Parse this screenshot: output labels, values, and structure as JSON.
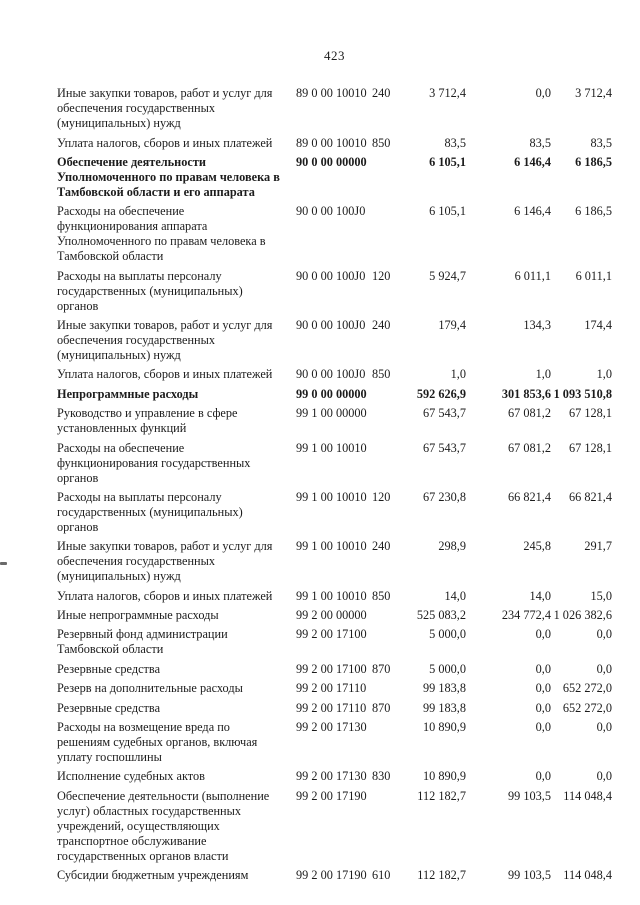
{
  "page": {
    "number": "423"
  },
  "table": {
    "rows": [
      {
        "name": "Иные закупки товаров, работ и услуг для обеспечения государственных (муниципальных) нужд",
        "code": "89 0 00 10010",
        "vr": "240",
        "v1": "3 712,4",
        "v2": "0,0",
        "v3": "3 712,4",
        "bold": false
      },
      {
        "name": "Уплата налогов, сборов и иных платежей",
        "code": "89 0 00 10010",
        "vr": "850",
        "v1": "83,5",
        "v2": "83,5",
        "v3": "83,5",
        "bold": false
      },
      {
        "name": "Обеспечение деятельности Уполномоченного по правам человека в Тамбовской области и его аппарата",
        "code": "90 0 00 00000",
        "vr": "",
        "v1": "6 105,1",
        "v2": "6 146,4",
        "v3": "6 186,5",
        "bold": true
      },
      {
        "name": "Расходы на обеспечение функционирования аппарата Уполномоченного по правам человека в Тамбовской области",
        "code": "90 0 00 100J0",
        "vr": "",
        "v1": "6 105,1",
        "v2": "6 146,4",
        "v3": "6 186,5",
        "bold": false
      },
      {
        "name": "Расходы на выплаты персоналу государственных (муниципальных) органов",
        "code": "90 0 00 100J0",
        "vr": "120",
        "v1": "5 924,7",
        "v2": "6 011,1",
        "v3": "6 011,1",
        "bold": false
      },
      {
        "name": "Иные закупки товаров, работ и услуг для обеспечения государственных (муниципальных) нужд",
        "code": "90 0 00 100J0",
        "vr": "240",
        "v1": "179,4",
        "v2": "134,3",
        "v3": "174,4",
        "bold": false
      },
      {
        "name": "Уплата налогов, сборов и иных платежей",
        "code": "90 0 00 100J0",
        "vr": "850",
        "v1": "1,0",
        "v2": "1,0",
        "v3": "1,0",
        "bold": false
      },
      {
        "name": "Непрограммные расходы",
        "code": "99 0 00 00000",
        "vr": "",
        "v1": "592 626,9",
        "v2": "301 853,6",
        "v3": "1 093 510,8",
        "bold": true
      },
      {
        "name": "Руководство и управление в сфере установленных функций",
        "code": "99 1 00 00000",
        "vr": "",
        "v1": "67 543,7",
        "v2": "67 081,2",
        "v3": "67 128,1",
        "bold": false
      },
      {
        "name": "Расходы на обеспечение функционирования государственных органов",
        "code": "99 1 00 10010",
        "vr": "",
        "v1": "67 543,7",
        "v2": "67 081,2",
        "v3": "67 128,1",
        "bold": false
      },
      {
        "name": "Расходы на выплаты персоналу государственных (муниципальных) органов",
        "code": "99 1 00 10010",
        "vr": "120",
        "v1": "67 230,8",
        "v2": "66 821,4",
        "v3": "66 821,4",
        "bold": false
      },
      {
        "name": "Иные закупки товаров, работ и услуг для обеспечения государственных (муниципальных) нужд",
        "code": "99 1 00 10010",
        "vr": "240",
        "v1": "298,9",
        "v2": "245,8",
        "v3": "291,7",
        "bold": false
      },
      {
        "name": "Уплата налогов, сборов и иных платежей",
        "code": "99 1 00 10010",
        "vr": "850",
        "v1": "14,0",
        "v2": "14,0",
        "v3": "15,0",
        "bold": false
      },
      {
        "name": "Иные непрограммные расходы",
        "code": "99 2 00 00000",
        "vr": "",
        "v1": "525 083,2",
        "v2": "234 772,4",
        "v3": "1 026 382,6",
        "bold": false
      },
      {
        "name": "Резервный фонд администрации Тамбовской области",
        "code": "99 2 00 17100",
        "vr": "",
        "v1": "5 000,0",
        "v2": "0,0",
        "v3": "0,0",
        "bold": false
      },
      {
        "name": "Резервные средства",
        "code": "99 2 00 17100",
        "vr": "870",
        "v1": "5 000,0",
        "v2": "0,0",
        "v3": "0,0",
        "bold": false
      },
      {
        "name": "Резерв на дополнительные расходы",
        "code": "99 2 00 17110",
        "vr": "",
        "v1": "99 183,8",
        "v2": "0,0",
        "v3": "652 272,0",
        "bold": false
      },
      {
        "name": "Резервные средства",
        "code": "99 2 00 17110",
        "vr": "870",
        "v1": "99 183,8",
        "v2": "0,0",
        "v3": "652 272,0",
        "bold": false
      },
      {
        "name": "Расходы на возмещение вреда по решениям судебных органов, включая уплату госпошлины",
        "code": "99 2 00 17130",
        "vr": "",
        "v1": "10 890,9",
        "v2": "0,0",
        "v3": "0,0",
        "bold": false
      },
      {
        "name": "Исполнение судебных актов",
        "code": "99 2 00 17130",
        "vr": "830",
        "v1": "10 890,9",
        "v2": "0,0",
        "v3": "0,0",
        "bold": false
      },
      {
        "name": "Обеспечение деятельности (выполнение услуг) областных государственных учреждений, осуществляющих транспортное обслуживание государственных органов власти",
        "code": "99 2 00 17190",
        "vr": "",
        "v1": "112 182,7",
        "v2": "99 103,5",
        "v3": "114 048,4",
        "bold": false
      },
      {
        "name": "Субсидии бюджетным учреждениям",
        "code": "99 2 00 17190",
        "vr": "610",
        "v1": "112 182,7",
        "v2": "99 103,5",
        "v3": "114 048,4",
        "bold": false
      }
    ]
  }
}
